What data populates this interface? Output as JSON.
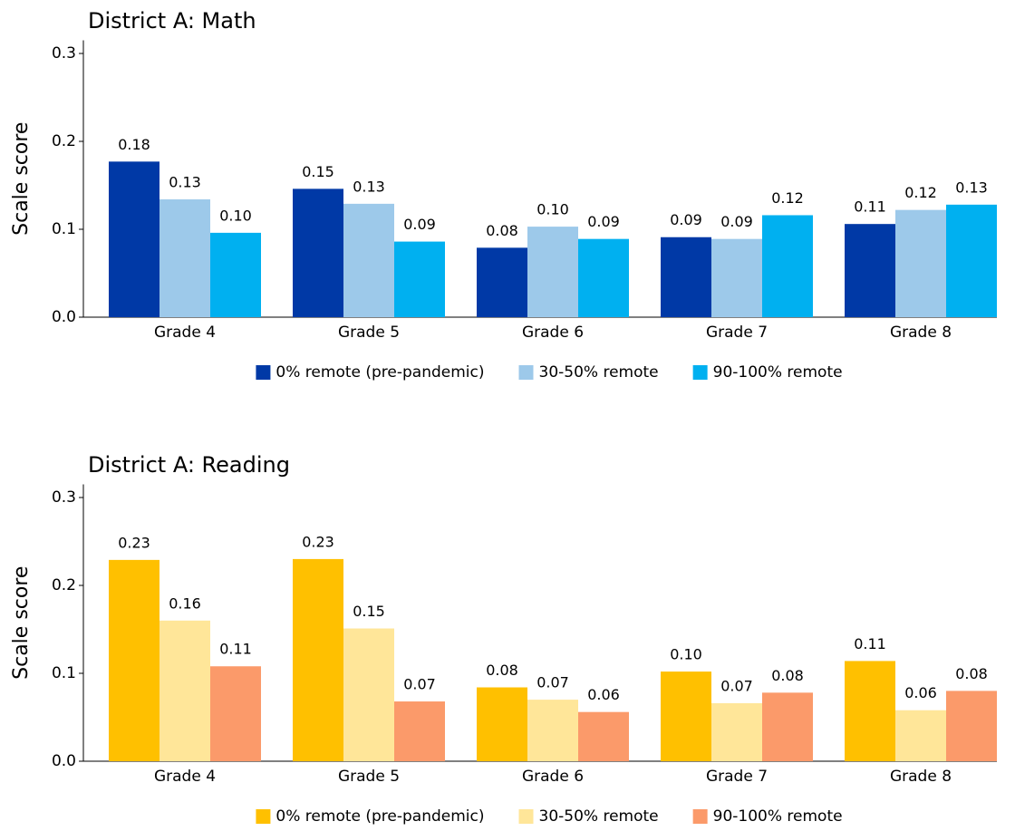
{
  "chart_data": [
    {
      "type": "bar",
      "title": "District A: Math",
      "y_label": "Scale score",
      "categories": [
        "Grade 4",
        "Grade 5",
        "Grade 6",
        "Grade 7",
        "Grade 8"
      ],
      "series": [
        {
          "name": "0% remote (pre-pandemic)",
          "color": "#0039a6",
          "values": [
            0.177,
            0.146,
            0.079,
            0.091,
            0.106
          ],
          "value_labels": [
            "0.18",
            "0.15",
            "0.08",
            "0.09",
            "0.11"
          ]
        },
        {
          "name": "30-50% remote",
          "color": "#9dc9ea",
          "values": [
            0.134,
            0.129,
            0.103,
            0.089,
            0.122
          ],
          "value_labels": [
            "0.13",
            "0.13",
            "0.10",
            "0.09",
            "0.12"
          ]
        },
        {
          "name": "90-100% remote",
          "color": "#00b0f0",
          "values": [
            0.096,
            0.086,
            0.089,
            0.116,
            0.128
          ],
          "value_labels": [
            "0.10",
            "0.09",
            "0.09",
            "0.12",
            "0.13"
          ]
        }
      ],
      "ylim": [
        0,
        0.315
      ],
      "yticks": [
        {
          "value": 0,
          "label": "0.0"
        },
        0.1,
        0.2,
        0.3
      ],
      "legend": "bottom"
    },
    {
      "type": "bar",
      "title": "District A: Reading",
      "y_label": "Scale score",
      "categories": [
        "Grade 4",
        "Grade 5",
        "Grade 6",
        "Grade 7",
        "Grade 8"
      ],
      "series": [
        {
          "name": "0% remote (pre-pandemic)",
          "color": "#ffc000",
          "values": [
            0.229,
            0.23,
            0.084,
            0.102,
            0.114
          ],
          "value_labels": [
            "0.23",
            "0.23",
            "0.08",
            "0.10",
            "0.11"
          ]
        },
        {
          "name": "30-50% remote",
          "color": "#ffe699",
          "values": [
            0.16,
            0.151,
            0.07,
            0.066,
            0.058
          ],
          "value_labels": [
            "0.16",
            "0.15",
            "0.07",
            "0.07",
            "0.06"
          ]
        },
        {
          "name": "90-100% remote",
          "color": "#fb9a6a",
          "values": [
            0.108,
            0.068,
            0.056,
            0.078,
            0.08
          ],
          "value_labels": [
            "0.11",
            "0.07",
            "0.06",
            "0.08",
            "0.08"
          ]
        }
      ],
      "ylim": [
        0,
        0.315
      ],
      "yticks": [
        {
          "value": 0,
          "label": "0.0"
        },
        0.1,
        0.2,
        0.3
      ],
      "legend": "bottom"
    }
  ]
}
